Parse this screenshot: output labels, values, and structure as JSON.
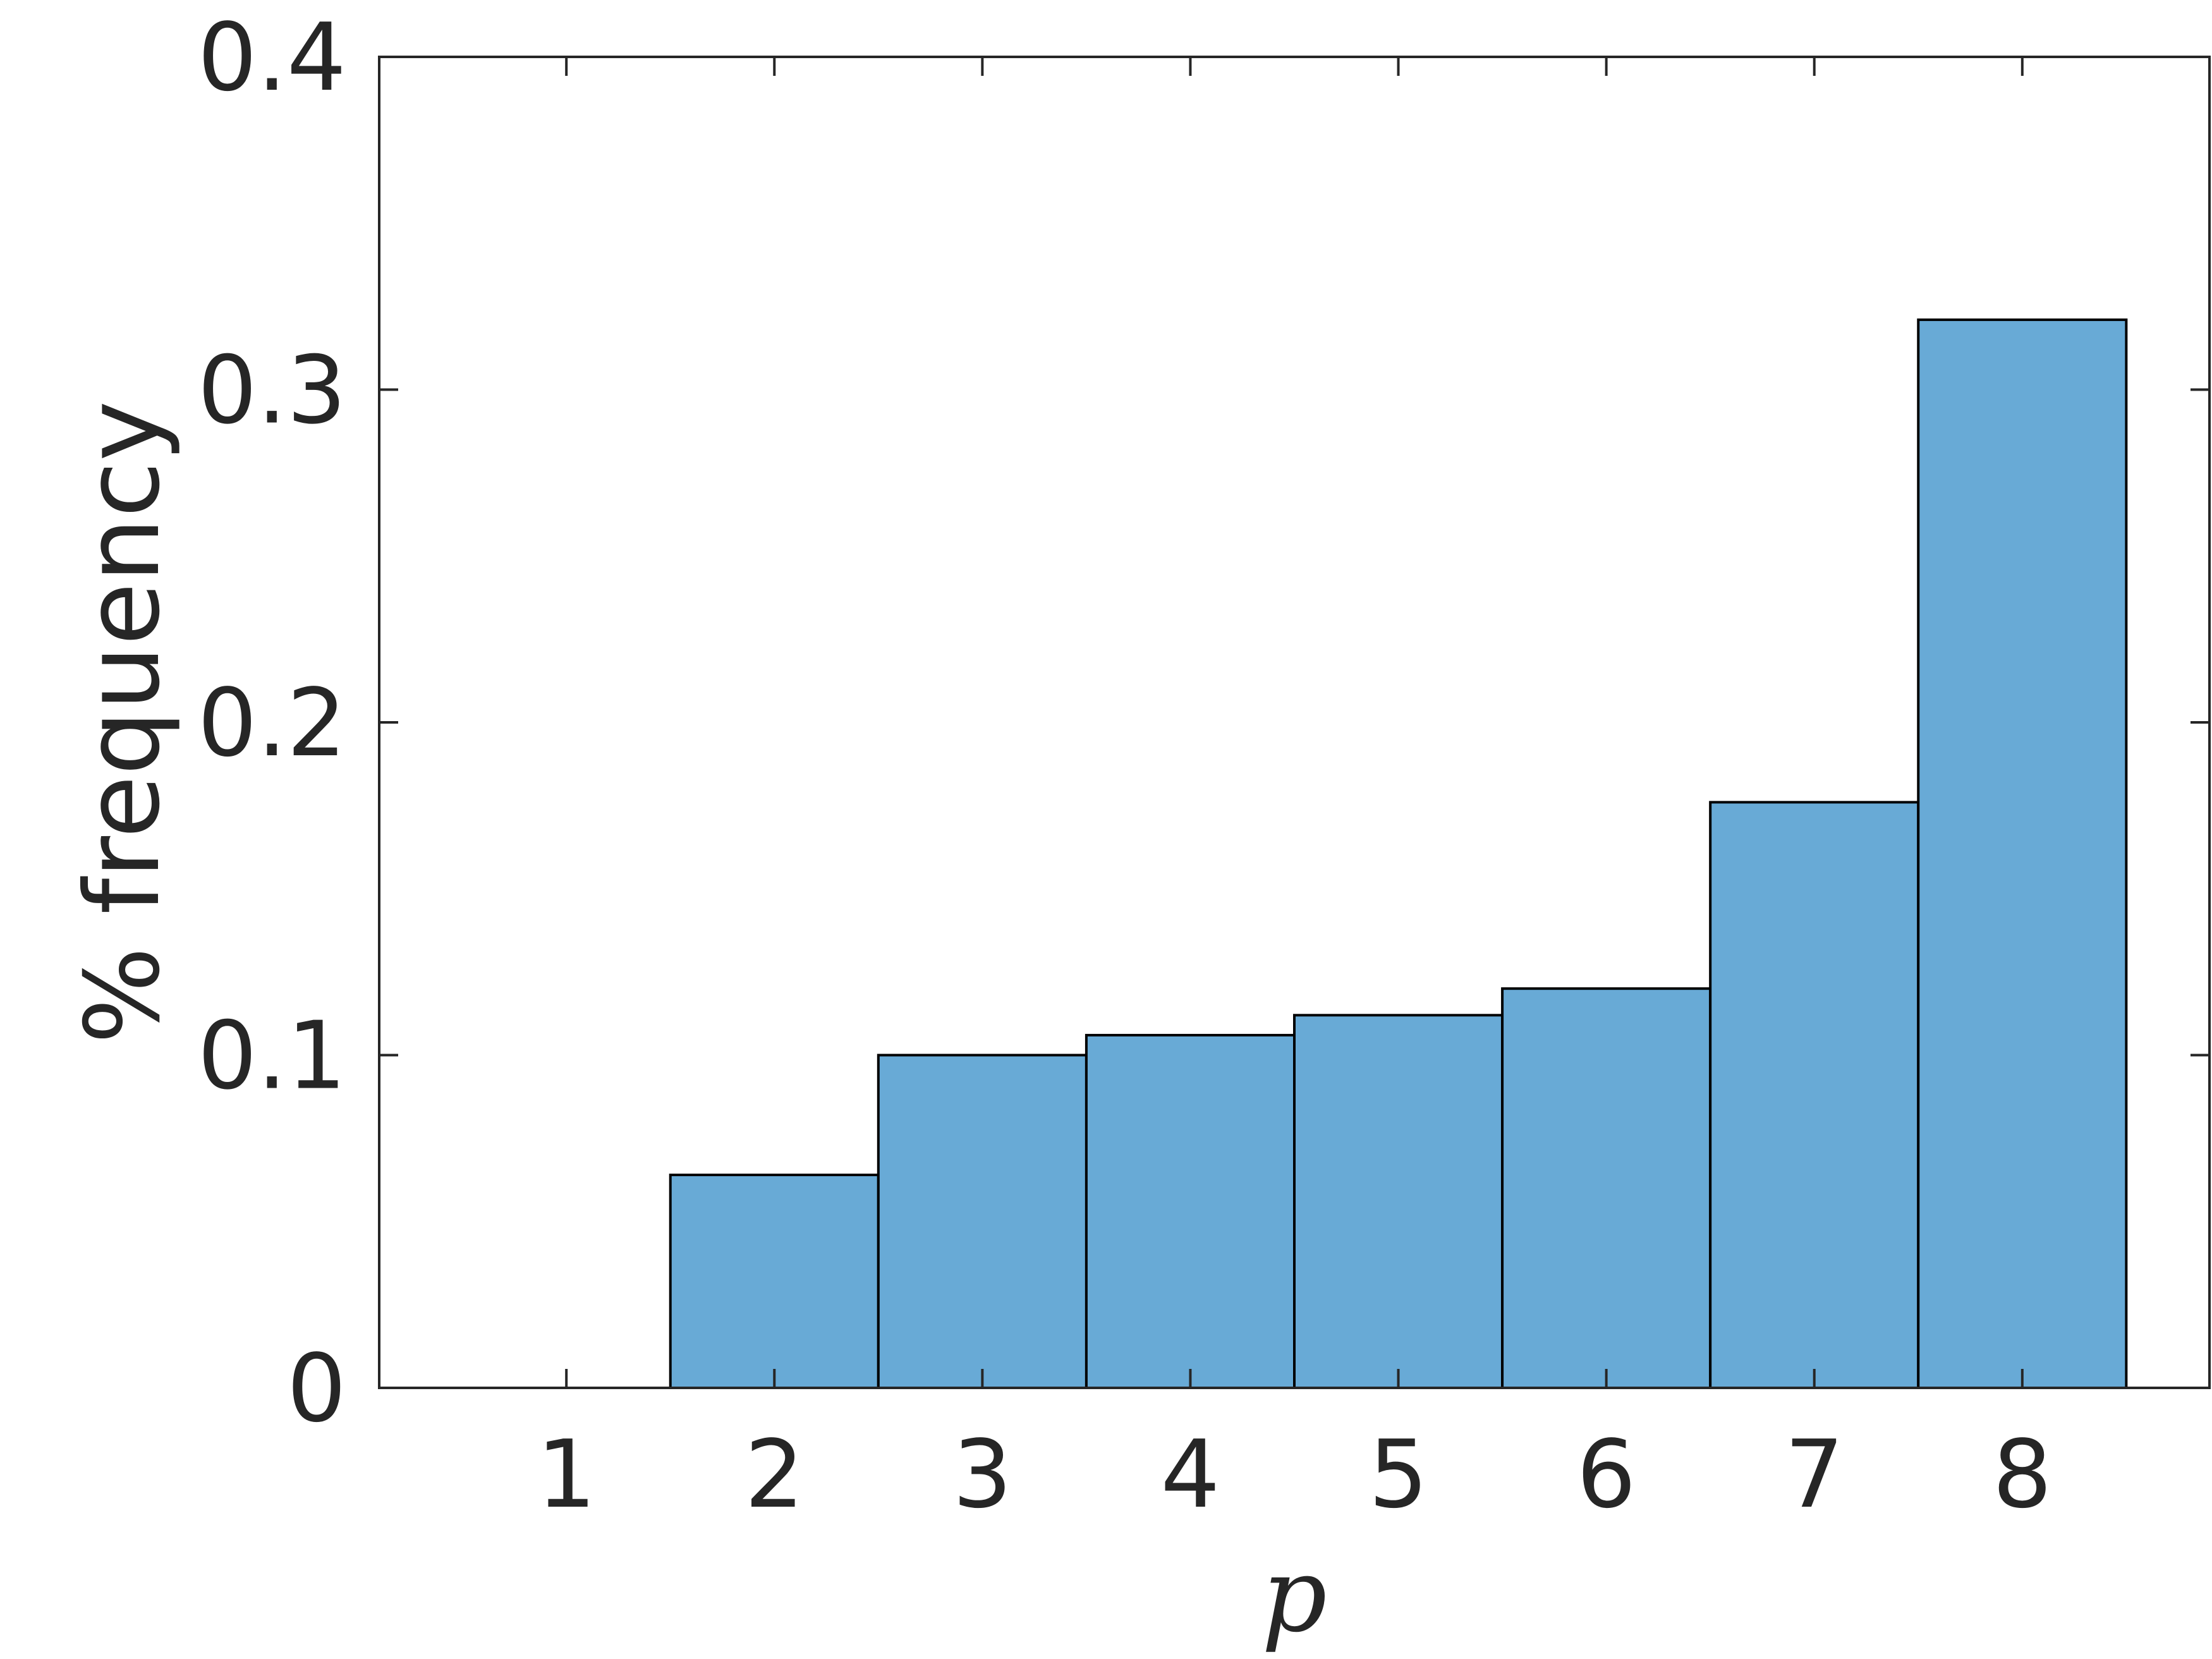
{
  "chart_data": {
    "type": "bar",
    "title": "",
    "xlabel": "p",
    "ylabel": "% frequency",
    "x_ticks": [
      "1",
      "2",
      "3",
      "4",
      "5",
      "6",
      "7",
      "8"
    ],
    "y_ticks": [
      "0",
      "0.1",
      "0.2",
      "0.3",
      "0.4"
    ],
    "xlim": [
      0.1,
      8.9
    ],
    "ylim": [
      0,
      0.4
    ],
    "categories": [
      1,
      2,
      3,
      4,
      5,
      6,
      7,
      8
    ],
    "values": [
      0,
      0.064,
      0.1,
      0.106,
      0.112,
      0.12,
      0.176,
      0.321
    ],
    "bar_color": "#68aad6",
    "edge_color": "#000000",
    "grid": false,
    "legend": "none"
  }
}
